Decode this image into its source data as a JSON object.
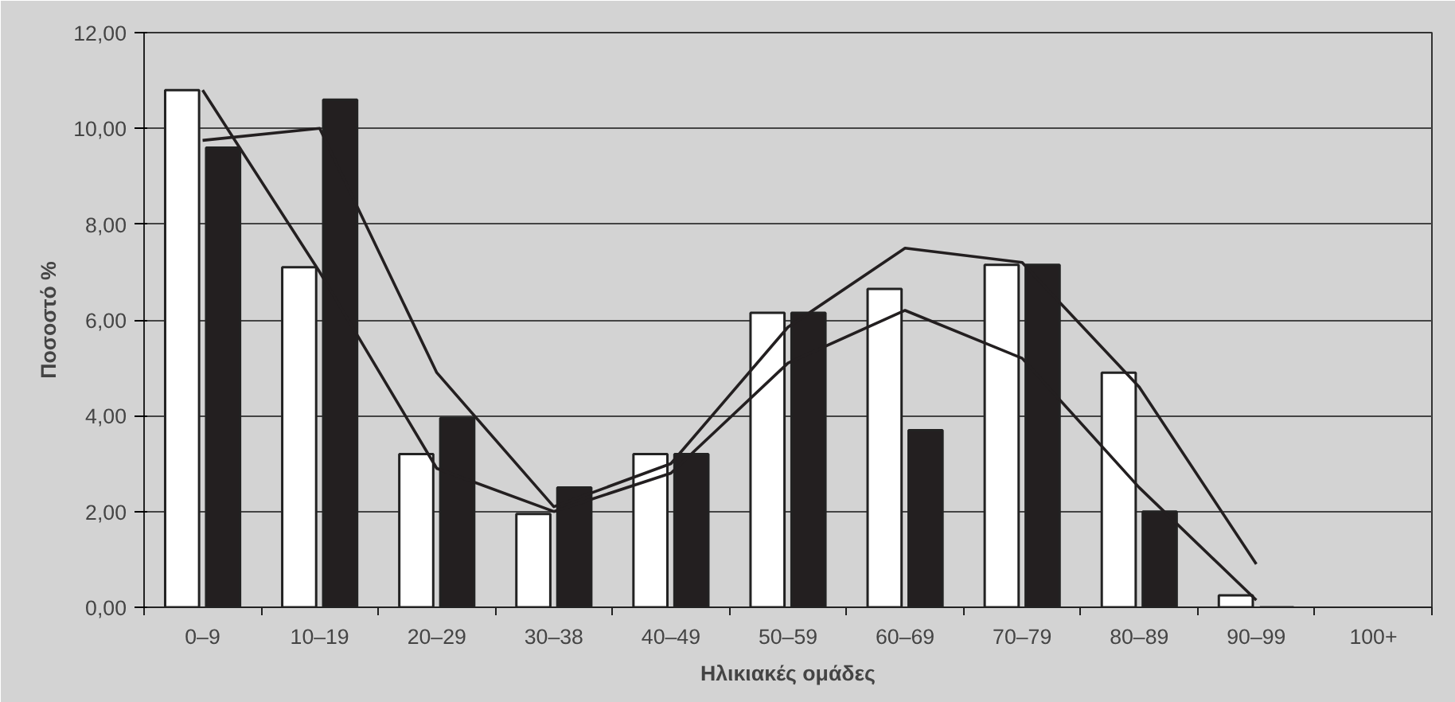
{
  "chart_data": {
    "type": "bar",
    "xlabel": "Ηλικιακές ομάδες",
    "ylabel": "Ποσοστό %",
    "categories": [
      "0–9",
      "10–19",
      "20–29",
      "30–38",
      "40–49",
      "50–59",
      "60–69",
      "70–79",
      "80–89",
      "90–99",
      "100+"
    ],
    "series": [
      {
        "color": "#ffffff",
        "values": [
          10.8,
          7.1,
          3.2,
          1.95,
          3.2,
          6.15,
          6.65,
          7.15,
          4.9,
          0.25,
          null
        ]
      },
      {
        "color": "#231f20",
        "values": [
          9.6,
          10.6,
          3.95,
          2.5,
          3.2,
          6.15,
          3.7,
          7.15,
          2.0,
          0,
          null
        ]
      },
      {
        "type": "line",
        "color": "#231f20",
        "values": [
          10.8,
          7.0,
          2.9,
          2.0,
          2.8,
          5.1,
          6.2,
          5.2,
          2.5,
          0.15,
          null
        ]
      },
      {
        "type": "line",
        "color": "#231f20",
        "values": [
          9.75,
          10.0,
          4.9,
          2.1,
          3.0,
          5.85,
          7.5,
          7.2,
          4.6,
          0.9,
          null
        ]
      }
    ],
    "ylim": [
      0,
      12
    ],
    "yticks": [
      {
        "value": 0,
        "label": "0,00"
      },
      {
        "value": 2,
        "label": "2,00"
      },
      {
        "value": 4,
        "label": "4,00"
      },
      {
        "value": 6,
        "label": "6,00"
      },
      {
        "value": 8,
        "label": "8,00"
      },
      {
        "value": 10,
        "label": "10,00"
      },
      {
        "value": 12,
        "label": "12,00"
      }
    ],
    "grid": "y",
    "marker": "none",
    "line_style": "solid"
  }
}
